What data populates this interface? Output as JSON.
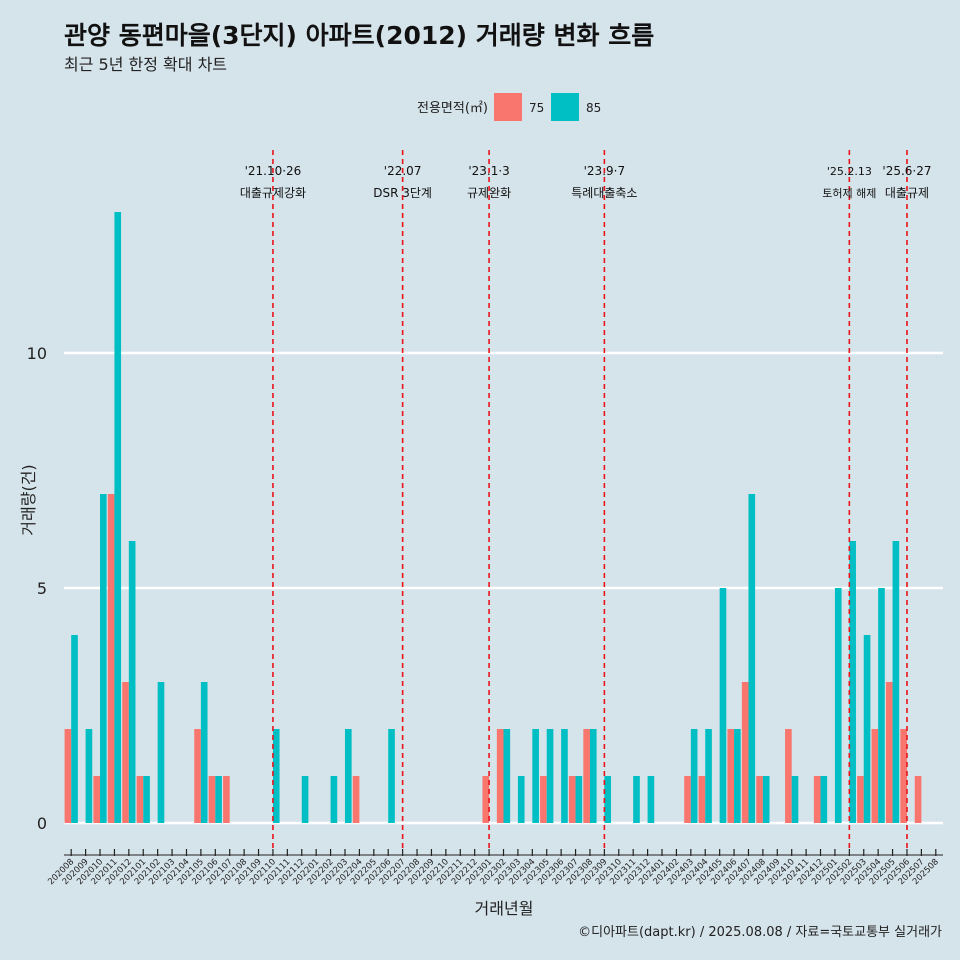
{
  "chart_data": {
    "type": "bar",
    "title": "관양 동편마을(3단지) 아파트(2012) 거래량 변화 흐름",
    "subtitle": "최근 5년 한정 확대 차트",
    "xlabel": "거래년월",
    "ylabel": "거래량(건)",
    "ylim": [
      0,
      13
    ],
    "yticks": [
      0,
      5,
      10
    ],
    "grid": "horizontal",
    "legend": {
      "title": "전용면적(㎡)",
      "position": "top"
    },
    "caption": "©디아파트(dapt.kr) / 2025.08.08 / 자료=국토교통부 실거래가",
    "categories": [
      "202008",
      "202009",
      "202010",
      "202011",
      "202012",
      "202101",
      "202102",
      "202103",
      "202104",
      "202105",
      "202106",
      "202107",
      "202108",
      "202109",
      "202110",
      "202111",
      "202112",
      "202201",
      "202202",
      "202203",
      "202204",
      "202205",
      "202206",
      "202207",
      "202208",
      "202209",
      "202210",
      "202211",
      "202212",
      "202301",
      "202302",
      "202303",
      "202304",
      "202305",
      "202306",
      "202307",
      "202308",
      "202309",
      "202310",
      "202311",
      "202312",
      "202401",
      "202402",
      "202403",
      "202404",
      "202405",
      "202406",
      "202407",
      "202408",
      "202409",
      "202410",
      "202411",
      "202412",
      "202501",
      "202502",
      "202503",
      "202504",
      "202505",
      "202506",
      "202507",
      "202508"
    ],
    "series": [
      {
        "name": "75",
        "color": "#f8766d",
        "values": [
          2,
          0,
          1,
          7,
          3,
          1,
          0,
          0,
          0,
          2,
          1,
          1,
          0,
          0,
          0,
          0,
          0,
          0,
          0,
          0,
          1,
          0,
          0,
          0,
          0,
          0,
          0,
          0,
          0,
          1,
          2,
          0,
          0,
          1,
          0,
          1,
          2,
          0,
          0,
          0,
          0,
          0,
          0,
          1,
          1,
          0,
          2,
          3,
          1,
          0,
          2,
          0,
          1,
          0,
          0,
          1,
          2,
          3,
          2,
          1,
          0
        ]
      },
      {
        "name": "85",
        "color": "#00bfc4",
        "values": [
          4,
          2,
          7,
          13,
          6,
          1,
          3,
          0,
          0,
          3,
          1,
          0,
          0,
          0,
          2,
          0,
          1,
          0,
          1,
          2,
          0,
          0,
          2,
          0,
          0,
          0,
          0,
          0,
          0,
          0,
          2,
          1,
          2,
          2,
          2,
          1,
          2,
          1,
          0,
          1,
          1,
          0,
          0,
          2,
          2,
          5,
          2,
          7,
          1,
          0,
          1,
          0,
          1,
          5,
          6,
          4,
          5,
          6,
          0,
          0,
          0
        ]
      }
    ],
    "events": [
      {
        "category": "202110",
        "date": "'21.10·26",
        "label": "대출규제강화"
      },
      {
        "category": "202207",
        "date": "'22.07",
        "label": "DSR 3단계"
      },
      {
        "category": "202301",
        "date": "'23.1·3",
        "label": "규제완화"
      },
      {
        "category": "202309",
        "date": "'23.9·7",
        "label": "특례대출축소"
      },
      {
        "category": "202502",
        "date": "'25.2.13",
        "label": "토허제 해제"
      },
      {
        "category": "202506",
        "date": "'25.6·27",
        "label": "대출규제"
      }
    ]
  }
}
